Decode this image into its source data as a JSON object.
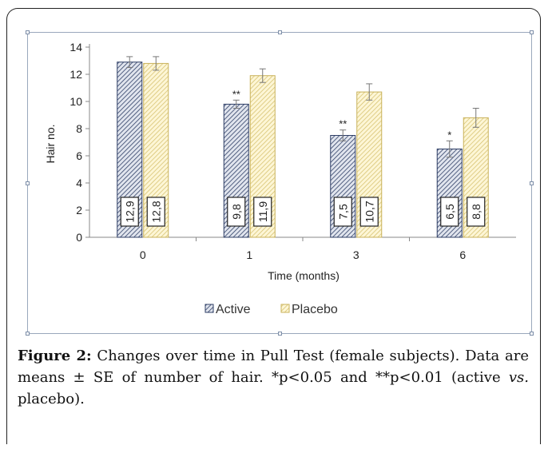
{
  "chart_data": {
    "type": "bar",
    "categories": [
      "0",
      "1",
      "3",
      "6"
    ],
    "series": [
      {
        "name": "Active",
        "values": [
          12.9,
          9.8,
          7.5,
          6.5
        ],
        "labels": [
          "12,9",
          "9,8",
          "7,5",
          "6,5"
        ],
        "errors": [
          0.4,
          0.3,
          0.4,
          0.6
        ],
        "significance": [
          "",
          "**",
          "**",
          "*"
        ],
        "color": "#2f3f66",
        "fill": "#dfe3ec"
      },
      {
        "name": "Placebo",
        "values": [
          12.8,
          11.9,
          10.7,
          8.8
        ],
        "labels": [
          "12,8",
          "11,9",
          "10,7",
          "8,8"
        ],
        "errors": [
          0.5,
          0.5,
          0.6,
          0.7
        ],
        "significance": [
          "",
          "",
          "",
          ""
        ],
        "color": "#c9b25a",
        "fill": "#fbf3cf"
      }
    ],
    "yticks": [
      "0",
      "2",
      "4",
      "6",
      "8",
      "10",
      "12",
      "14"
    ],
    "ylim": [
      0,
      14
    ],
    "xlabel": "Time (months)",
    "ylabel": "Hair no.",
    "legend_position": "bottom",
    "grid": false
  },
  "caption": {
    "label": "Figure 2:",
    "text": " Changes over time in Pull Test (female subjects). Data are means ± SE of number of hair. *p<0.05 and **p<0.01 (active ",
    "vs": "vs.",
    "text_end": " placebo)."
  }
}
